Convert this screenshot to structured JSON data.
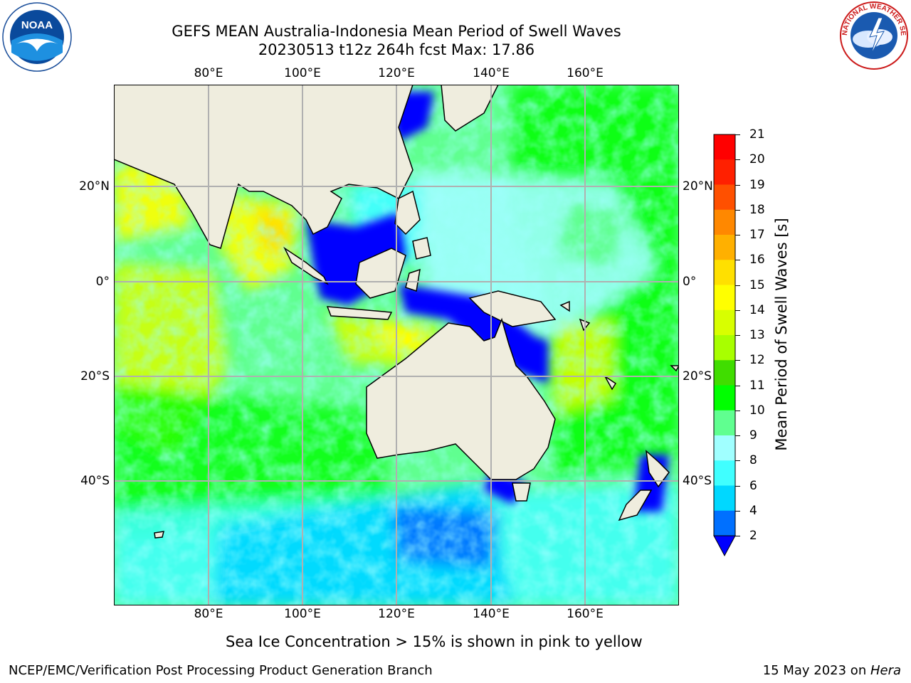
{
  "header": {
    "title_line1": "GEFS MEAN Australia-Indonesia Mean Period of Swell Waves",
    "title_line2": "20230513 t12z 264h fcst   Max: 17.86"
  },
  "axes": {
    "lon_labels": [
      "80°E",
      "100°E",
      "120°E",
      "140°E",
      "160°E"
    ],
    "lat_labels": [
      "20°N",
      "0°",
      "20°S",
      "40°S"
    ]
  },
  "colorbar": {
    "label": "Mean Period of Swell Waves [s]",
    "ticks": [
      "2",
      "4",
      "6",
      "8",
      "9",
      "10",
      "11",
      "12",
      "13",
      "14",
      "15",
      "16",
      "17",
      "18",
      "19",
      "20",
      "21"
    ],
    "colors": [
      "#0000ff",
      "#0070ff",
      "#00d8ff",
      "#40ffff",
      "#a0ffff",
      "#60ff90",
      "#00ff00",
      "#40dd00",
      "#a8ff00",
      "#d8ff00",
      "#ffff00",
      "#ffe000",
      "#ffb000",
      "#ff8800",
      "#ff5000",
      "#ff2000",
      "#ff0000"
    ]
  },
  "footer": {
    "note": "Sea Ice Concentration > 15% is shown in pink to yellow",
    "branch": "NCEP/EMC/Verification Post Processing Product Generation Branch",
    "date_prefix": "15 May 2023 on ",
    "date_host": "Hera"
  },
  "logos": {
    "noaa_text": "NOAA",
    "nws_text": "NATIONAL WEATHER SERVICE"
  },
  "colors": {
    "land": "#efedde",
    "grid": "#b0b0b0"
  }
}
